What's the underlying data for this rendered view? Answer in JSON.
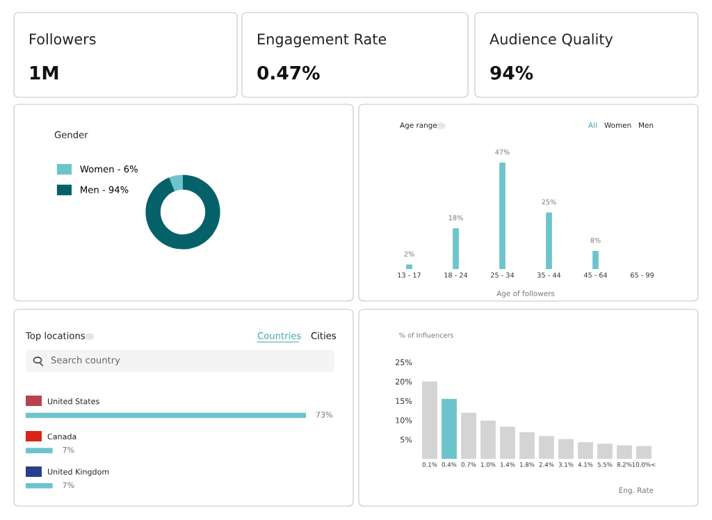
{
  "chart_data": [
    {
      "type": "other",
      "title": "Followers",
      "annotations": [
        "1M"
      ]
    },
    {
      "type": "other",
      "title": "Engagement Rate",
      "annotations": [
        "0.47%"
      ]
    },
    {
      "type": "other",
      "title": "Audience Quality",
      "annotations": [
        "94%"
      ]
    },
    {
      "type": "donut",
      "title": "Gender",
      "categories": [
        "Women - 6%",
        "Men - 94%"
      ],
      "values": [
        6,
        94
      ],
      "colors": [
        "#6cc4cc",
        "#04616a"
      ],
      "legend": "left"
    },
    {
      "type": "bar",
      "title": "Age range",
      "xlabel": "Age of followers",
      "annotations": [
        "All",
        "Women",
        "Men"
      ],
      "categories": [
        "13 - 17",
        "18 - 24",
        "25 - 34",
        "35 - 44",
        "45 - 64",
        "65 - 99"
      ],
      "values": [
        2,
        18,
        47,
        25,
        8,
        0
      ],
      "color": "#6cc4cc",
      "value_labels": [
        "2%",
        "18%",
        "47%",
        "25%",
        "8%",
        null
      ]
    },
    {
      "type": "bar",
      "orientation": "horizontal",
      "title": "Top locations",
      "annotations": [
        "Countries",
        "Cities",
        "Search country"
      ],
      "categories": [
        "United States",
        "Canada",
        "United Kingdom"
      ],
      "values": [
        73,
        7,
        7
      ],
      "color": "#6cc4cc",
      "value_labels": [
        "73%",
        "7%",
        "7%"
      ]
    },
    {
      "type": "bar",
      "ylabel": "% of Influencers",
      "xlabel": "Eng. Rate",
      "categories": [
        "0.1%",
        "0.4%",
        "0.7%",
        "1.0%",
        "1.4%",
        "1.8%",
        "2.4%",
        "3.1%",
        "4.1%",
        "5.5%",
        "8.2%",
        "10.0%<"
      ],
      "values": [
        20.0,
        15.5,
        11.9,
        9.9,
        8.3,
        6.9,
        5.9,
        5.1,
        4.3,
        3.9,
        3.5,
        3.3
      ],
      "colors": [
        "#d4d4d4",
        "#6cc4cc",
        "#d4d4d4",
        "#d4d4d4",
        "#d4d4d4",
        "#d4d4d4",
        "#d4d4d4",
        "#d4d4d4",
        "#d4d4d4",
        "#d4d4d4",
        "#d4d4d4",
        "#d4d4d4"
      ],
      "ylim": [
        0,
        25
      ],
      "yticks": [
        {
          "value": 5,
          "label": "5%"
        },
        {
          "value": 10,
          "label": "10%"
        },
        {
          "value": 15,
          "label": "15%"
        },
        {
          "value": 20,
          "label": "20%"
        },
        {
          "value": 25,
          "label": "25%"
        }
      ]
    }
  ]
}
